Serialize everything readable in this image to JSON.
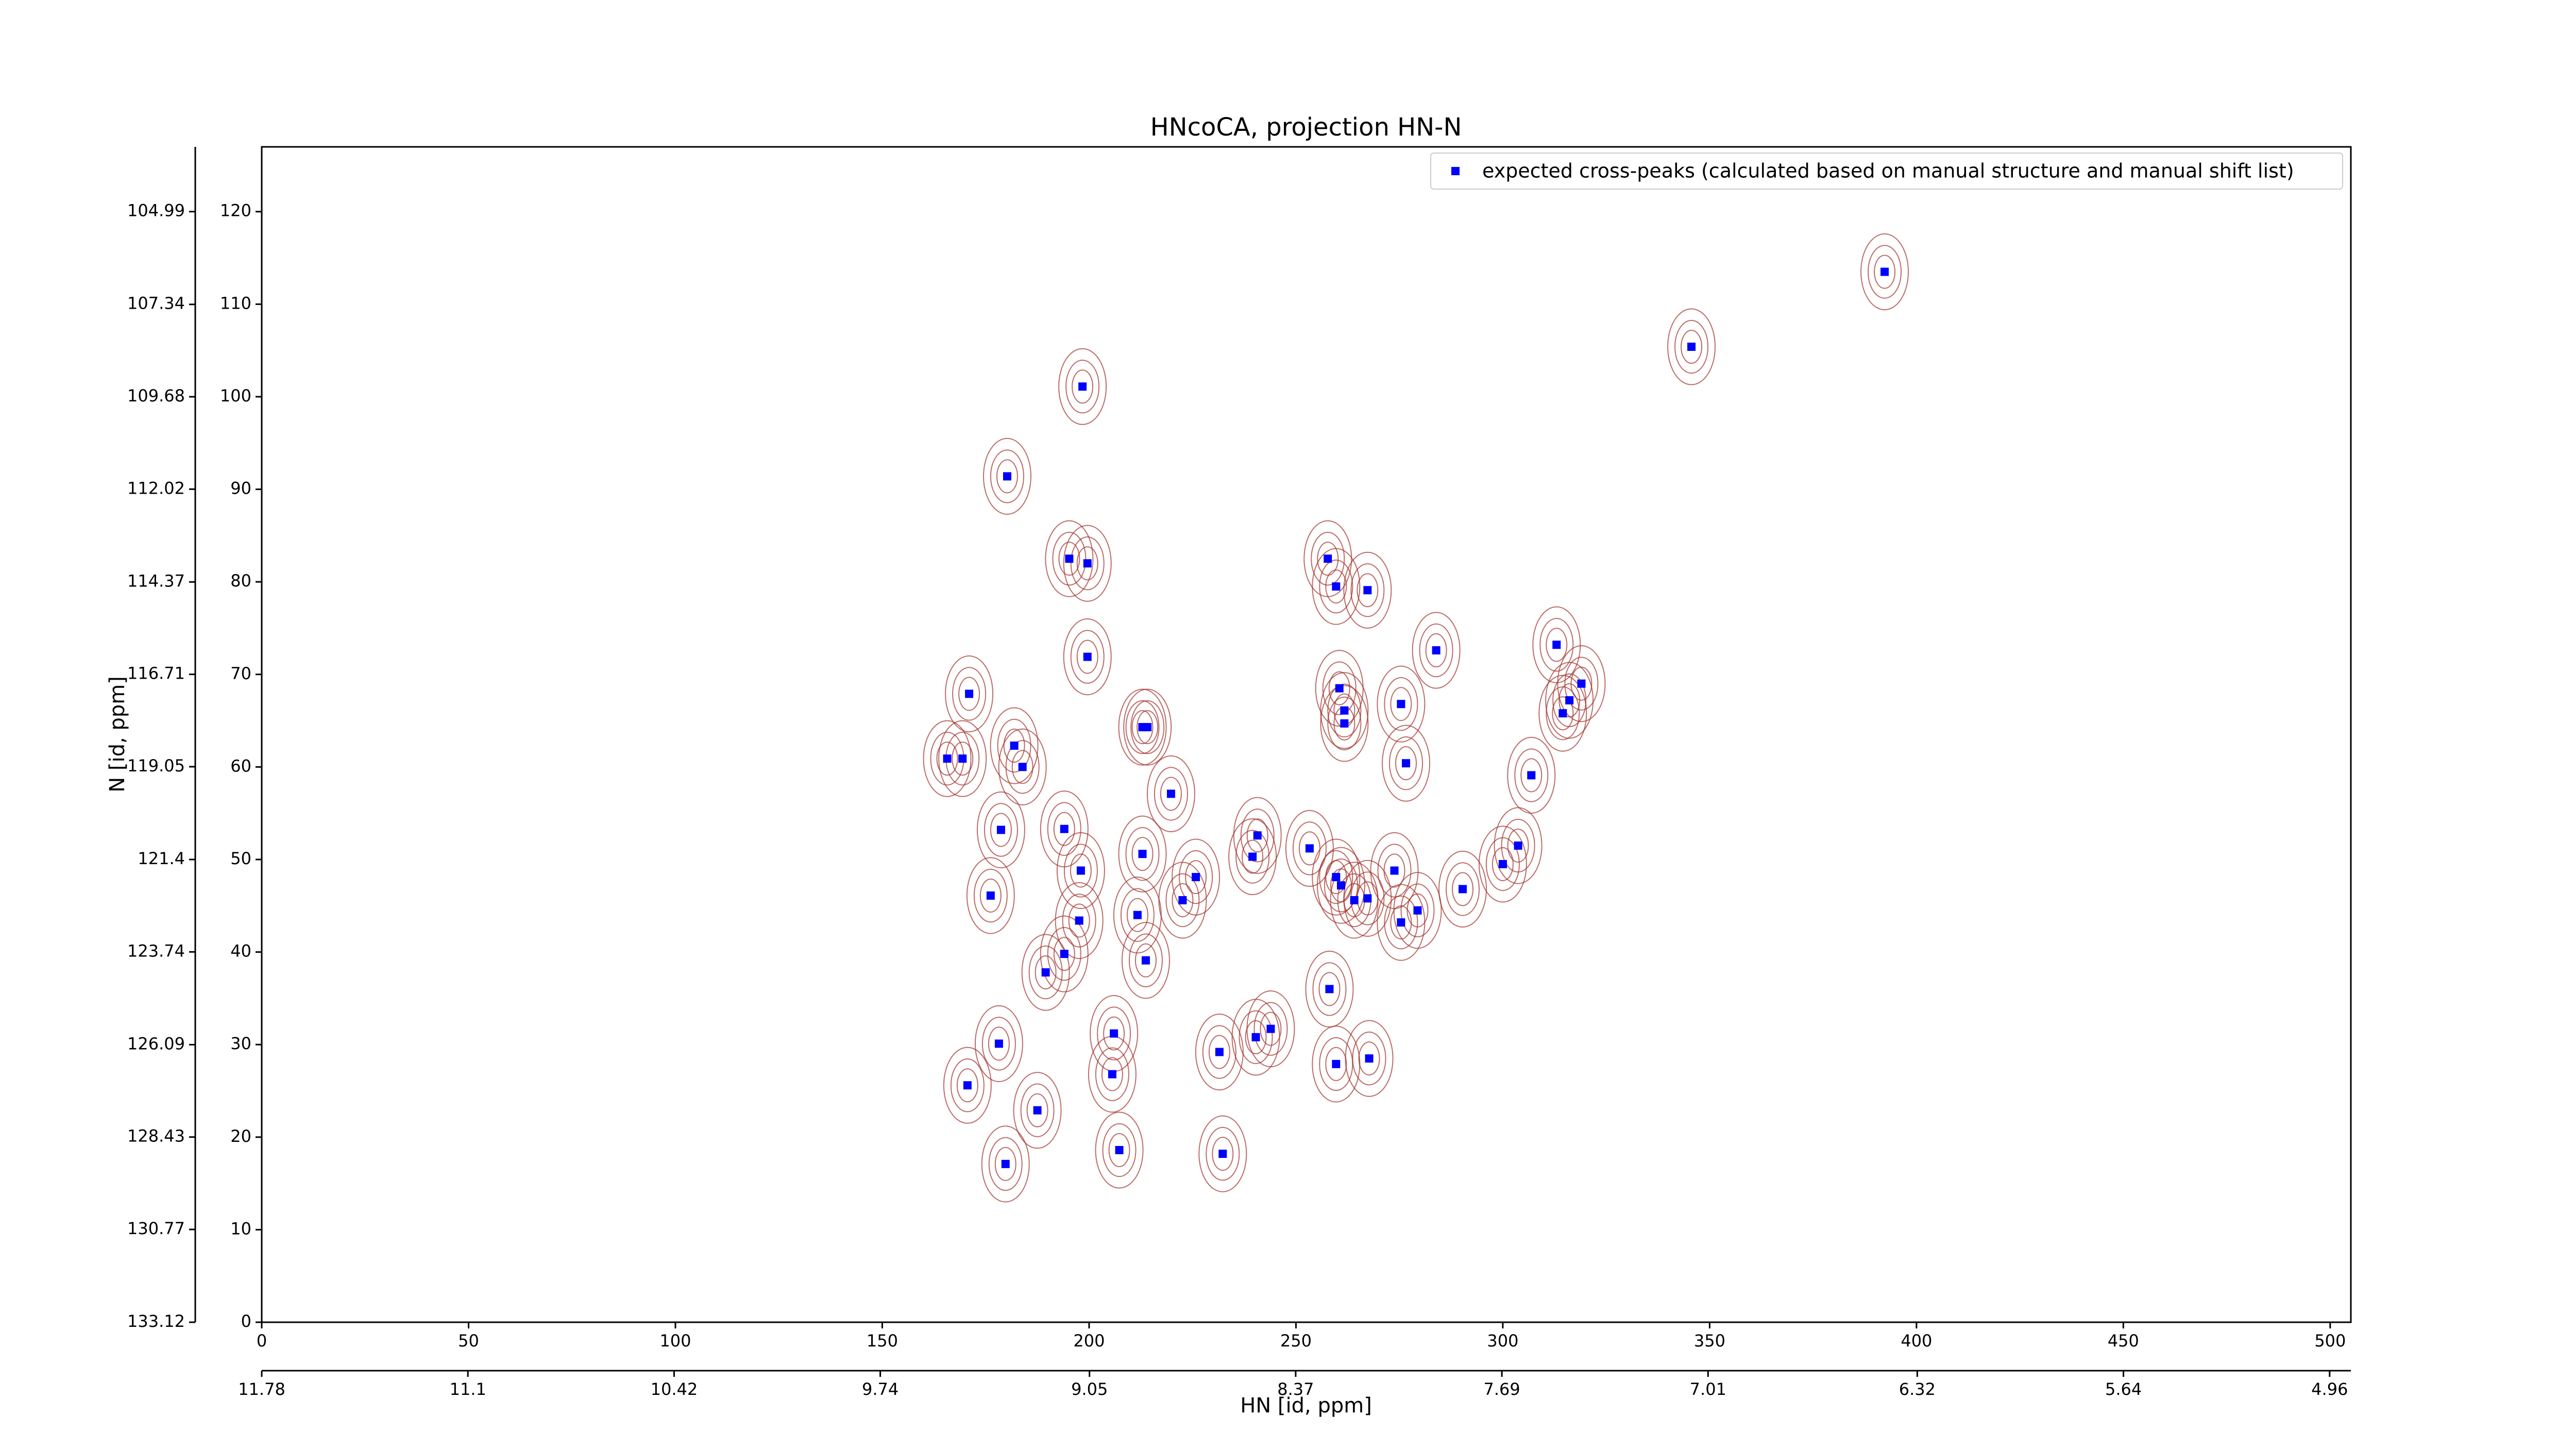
{
  "chart_data": {
    "type": "scatter",
    "title": "HNcoCA, projection HN-N",
    "xlabel": "HN [id, ppm]",
    "ylabel": "N [id, ppm]",
    "legend": "upper right",
    "series": [
      {
        "name": "expected cross-peaks (calculated based on manual structure and manual shift list)",
        "color": "#0000ff",
        "x": [
          392.3,
          345.6,
          198.4,
          180.2,
          195.2,
          199.6,
          257.7,
          259.7,
          267.3,
          283.9,
          199.6,
          313.0,
          171.0,
          260.5,
          261.7,
          261.7,
          275.4,
          319.0,
          316.1,
          314.5,
          212.9,
          214.1,
          181.9,
          165.7,
          169.4,
          183.9,
          276.6,
          306.9,
          219.8,
          240.7,
          178.7,
          194.0,
          212.9,
          239.5,
          253.3,
          303.7,
          198.0,
          273.8,
          300.0,
          225.8,
          259.7,
          260.9,
          290.3,
          176.2,
          222.6,
          264.1,
          267.3,
          279.4,
          211.7,
          197.6,
          275.4,
          194.0,
          189.5,
          213.7,
          258.1,
          206.0,
          178.2,
          240.3,
          243.9,
          231.5,
          259.7,
          267.7,
          205.6,
          170.6,
          187.5,
          207.3,
          232.3,
          179.8
        ],
        "values": [
          113.5,
          105.4,
          101.1,
          91.4,
          82.5,
          82.0,
          82.5,
          79.5,
          79.1,
          72.6,
          71.9,
          73.2,
          67.9,
          68.5,
          66.1,
          64.7,
          66.8,
          69.0,
          67.2,
          65.8,
          64.3,
          64.3,
          62.3,
          60.9,
          60.9,
          60.0,
          60.4,
          59.1,
          57.1,
          52.6,
          53.2,
          53.3,
          50.6,
          50.3,
          51.2,
          51.5,
          48.8,
          48.8,
          49.5,
          48.1,
          48.1,
          47.2,
          46.8,
          46.1,
          45.6,
          45.6,
          45.8,
          44.5,
          44.0,
          43.4,
          43.2,
          39.8,
          37.8,
          39.1,
          36.0,
          31.2,
          30.1,
          30.8,
          31.7,
          29.2,
          27.9,
          28.5,
          26.8,
          25.6,
          22.9,
          18.6,
          18.2,
          17.1
        ]
      }
    ],
    "xlim": [
      0,
      505
    ],
    "xticks": [
      0,
      50,
      100,
      150,
      200,
      250,
      300,
      350,
      400,
      450,
      500
    ],
    "ylim": [
      0,
      127
    ],
    "yticks": [
      0,
      10,
      20,
      30,
      40,
      50,
      60,
      70,
      80,
      90,
      100,
      110,
      120
    ],
    "x2lim": [
      11.78,
      4.89
    ],
    "x2ticks": [
      11.78,
      11.1,
      10.42,
      9.74,
      9.05,
      8.37,
      7.69,
      7.01,
      6.32,
      5.64,
      4.96
    ],
    "y2lim": [
      133.12,
      103.35
    ],
    "y2ticks": [
      133.12,
      130.77,
      128.43,
      126.09,
      123.74,
      121.4,
      119.05,
      116.71,
      114.37,
      112.02,
      109.68,
      107.34,
      104.99
    ]
  }
}
